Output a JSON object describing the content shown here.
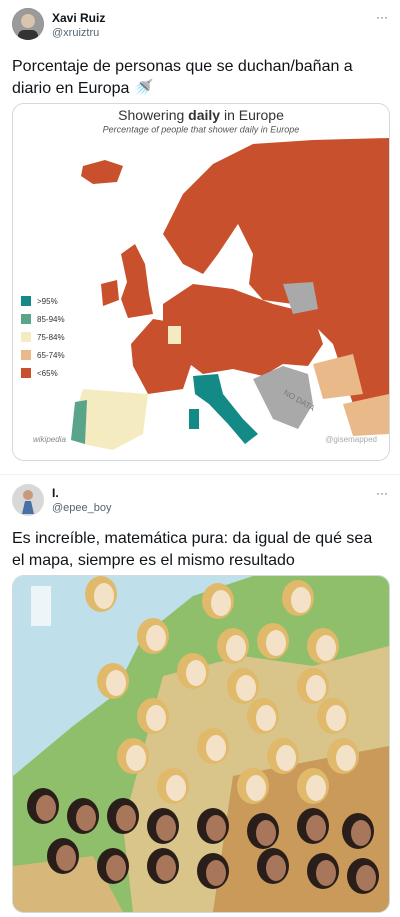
{
  "tweets": [
    {
      "author": {
        "name": "Xavi Ruiz",
        "handle": "@xruiztru"
      },
      "more": "···",
      "text_lines": [
        "Porcentaje de personas que se duchan/bañan a",
        "diario en Europa 🚿"
      ],
      "image": {
        "title_parts": [
          "Showering ",
          "daily",
          " in Europe"
        ],
        "subtitle": "Percentage of people that shower daily in Europe",
        "legend": [
          ">95%",
          "85-94%",
          "75-84%",
          "65-74%",
          "<65%"
        ],
        "labels": [
          "NO DATA"
        ],
        "source": "wikipedia",
        "credit": "@gisemapped"
      }
    },
    {
      "author": {
        "name": "I.",
        "handle": "@epee_boy"
      },
      "more": "···",
      "text_lines": [
        "Es increíble, matemática pura: da igual de qué sea",
        "el mapa, siempre es el mismo resultado"
      ]
    }
  ]
}
